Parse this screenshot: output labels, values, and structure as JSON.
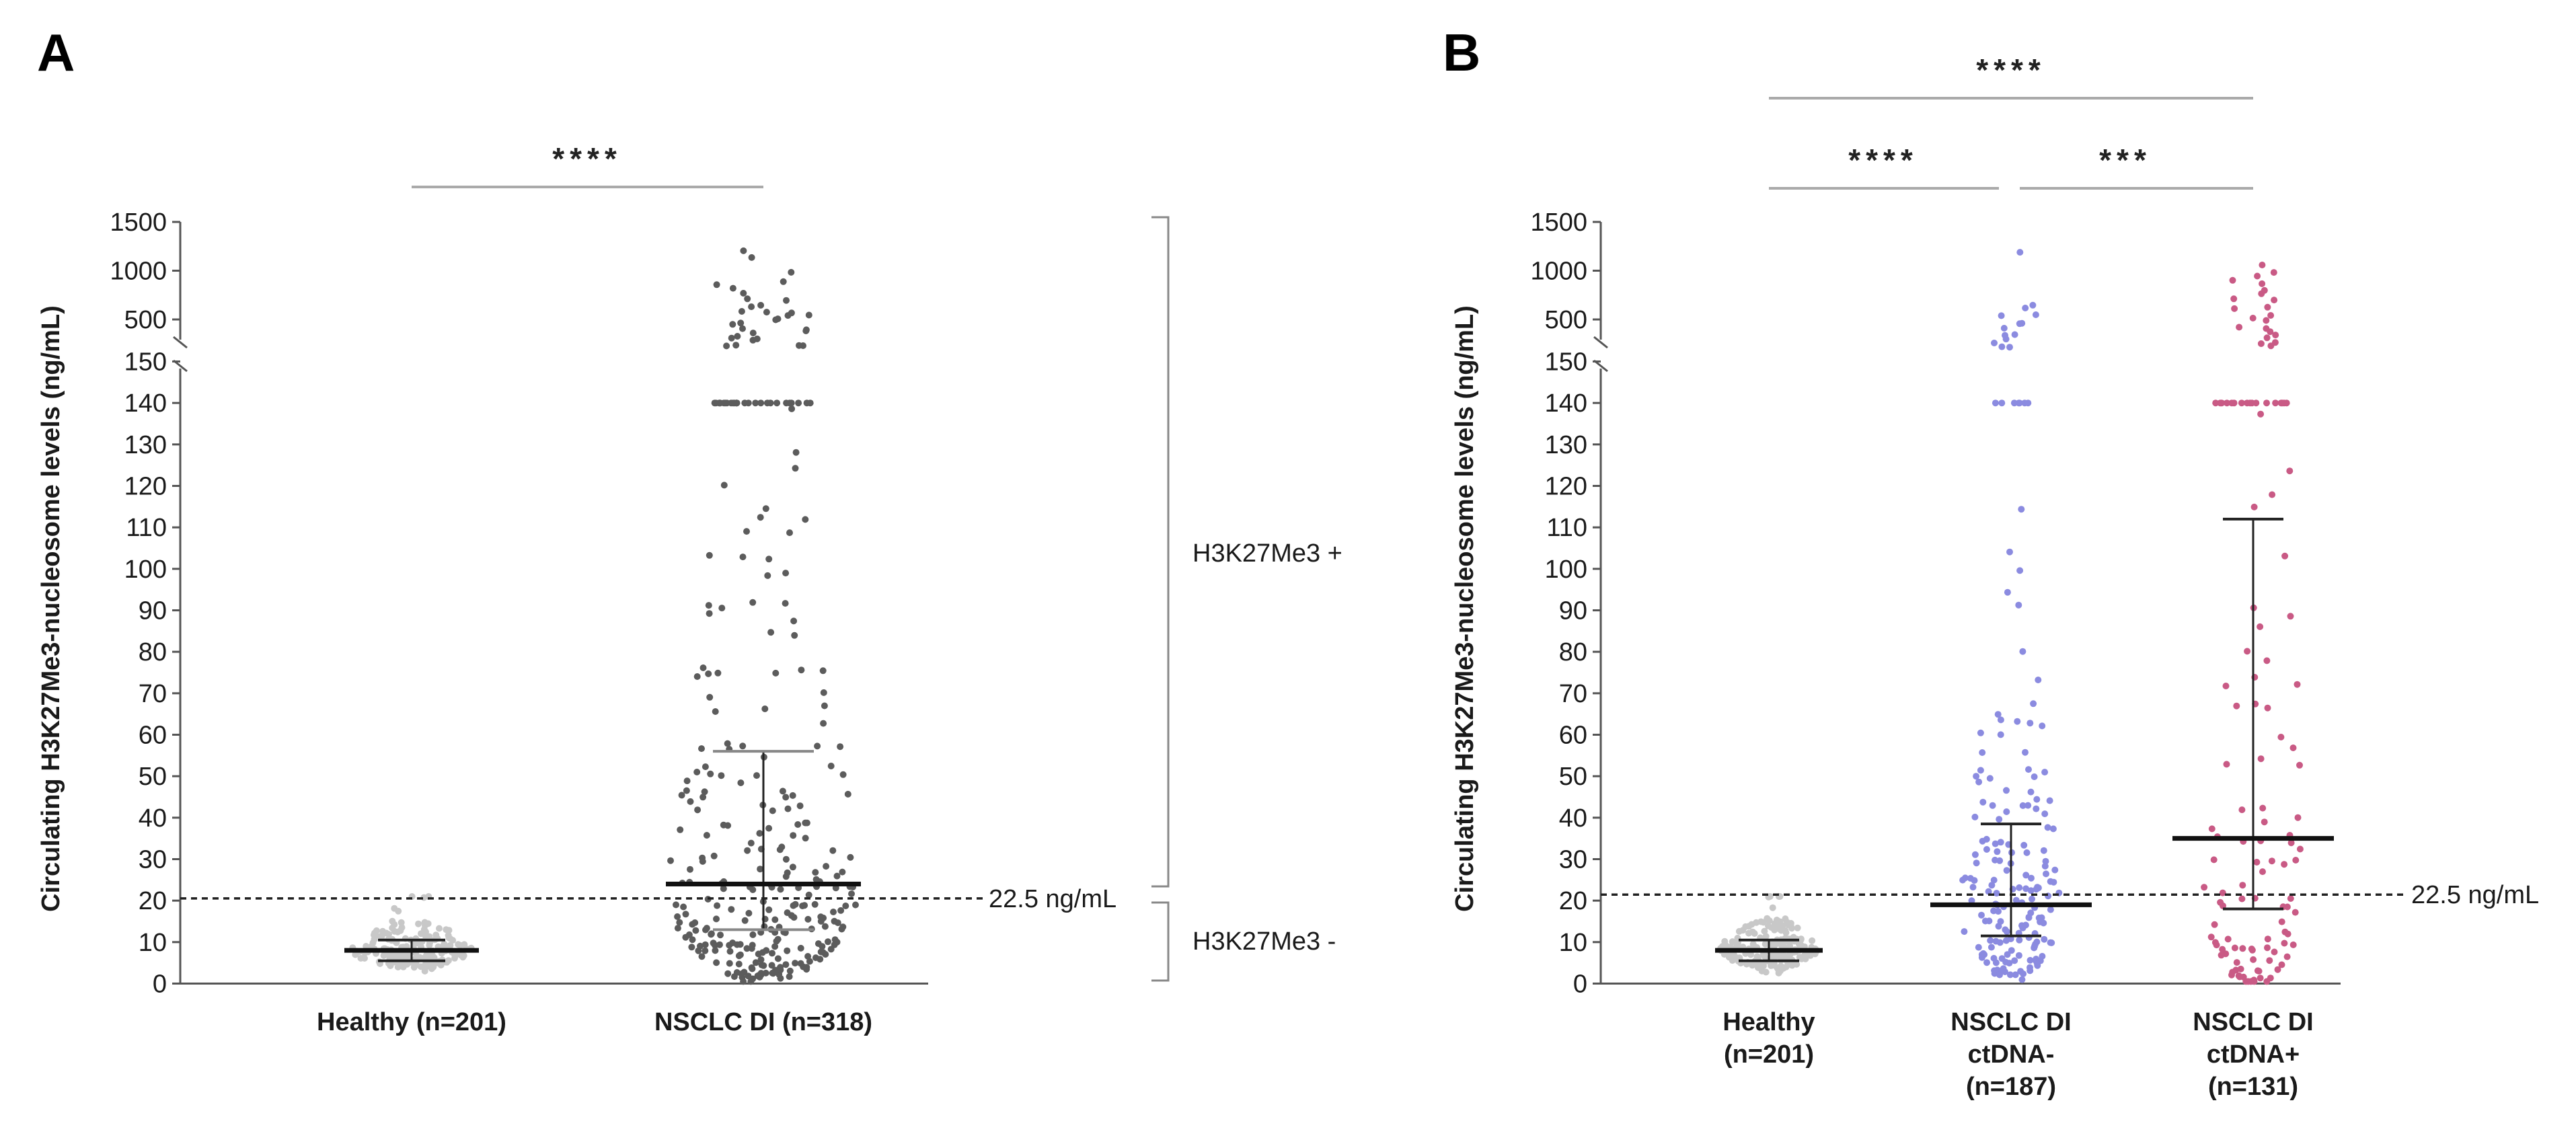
{
  "chart_data": [
    {
      "panel": "A",
      "type": "scatter",
      "ylabel": "Circulating H3K27Me3-nucleosome levels (ng/mL)",
      "yticks_lower": [
        "0",
        "10",
        "20",
        "30",
        "40",
        "50",
        "60",
        "70",
        "80",
        "90",
        "100",
        "110",
        "120",
        "130",
        "140",
        "150"
      ],
      "yticks_upper": [
        "500",
        "1000",
        "1500"
      ],
      "threshold": {
        "value": 22.5,
        "label": "22.5 ng/mL"
      },
      "brackets": {
        "positive": "H3K27Me3 +",
        "negative": "H3K27Me3 -"
      },
      "significance": [
        {
          "from": "Healthy",
          "to": "NSCLC DI",
          "stars": "****"
        }
      ],
      "groups": [
        {
          "name": "Healthy",
          "label_lines": [
            "Healthy (n=201)"
          ],
          "n": 201,
          "color": "#c8c8c8",
          "median": 8,
          "q1": 5.5,
          "q3": 10.5,
          "high_values": []
        },
        {
          "name": "NSCLC DI",
          "label_lines": [
            "NSCLC DI (n=318)"
          ],
          "n": 318,
          "color": "#5c5c5c",
          "median": 24,
          "q1": 13,
          "q3": 56,
          "high_values": [
            1200,
            1150,
            1000,
            900,
            850,
            800,
            760,
            720,
            680,
            650,
            620,
            600,
            580,
            560,
            540,
            520,
            500,
            480,
            460,
            440,
            420,
            400,
            380,
            360,
            340,
            320,
            300,
            280,
            260,
            240,
            230,
            220
          ]
        }
      ]
    },
    {
      "panel": "B",
      "type": "scatter",
      "ylabel": "Circulating H3K27Me3-nucleosome levels (ng/mL)",
      "yticks_lower": [
        "0",
        "10",
        "20",
        "30",
        "40",
        "50",
        "60",
        "70",
        "80",
        "90",
        "100",
        "110",
        "120",
        "130",
        "140",
        "150"
      ],
      "yticks_upper": [
        "500",
        "1000",
        "1500"
      ],
      "threshold": {
        "value": 22.5,
        "label": "22.5 ng/mL"
      },
      "significance": [
        {
          "from": "Healthy",
          "to": "NSCLC DI ctDNA+",
          "stars": "****"
        },
        {
          "from": "Healthy",
          "to": "NSCLC DI ctDNA-",
          "stars": "****"
        },
        {
          "from": "NSCLC DI ctDNA-",
          "to": "NSCLC DI ctDNA+",
          "stars": "***"
        }
      ],
      "groups": [
        {
          "name": "Healthy",
          "label_lines": [
            "Healthy",
            "(n=201)"
          ],
          "n": 201,
          "color": "#c8c8c8",
          "median": 8,
          "q1": 5.5,
          "q3": 10.5,
          "high_values": []
        },
        {
          "name": "NSCLC DI ctDNA-",
          "label_lines": [
            "NSCLC  DI",
            "ctDNA-",
            "(n=187)"
          ],
          "n": 187,
          "color": "#8b8be0",
          "median": 19,
          "q1": 11.5,
          "q3": 38.5,
          "high_values": [
            1200,
            640,
            600,
            560,
            520,
            480,
            440,
            400,
            360,
            330,
            300,
            270,
            240,
            220
          ]
        },
        {
          "name": "NSCLC DI ctDNA+",
          "label_lines": [
            "NSCLC  DI",
            "ctDNA+",
            "(n=131)"
          ],
          "n": 131,
          "color": "#c95a85",
          "median": 35,
          "q1": 18,
          "q3": 112,
          "high_values": [
            1050,
            1000,
            950,
            900,
            850,
            800,
            760,
            720,
            680,
            640,
            600,
            560,
            520,
            480,
            440,
            400,
            360,
            330,
            300,
            270,
            240,
            220
          ]
        }
      ]
    }
  ]
}
